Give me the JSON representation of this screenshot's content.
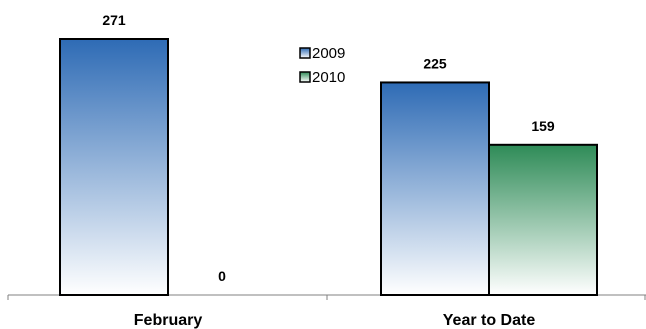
{
  "chart_data": {
    "type": "bar",
    "categories": [
      "February",
      "Year to Date"
    ],
    "series": [
      {
        "name": "2009",
        "values": [
          271,
          225
        ],
        "color": "#2e6bb5"
      },
      {
        "name": "2010",
        "values": [
          0,
          159
        ],
        "color": "#2e8b57"
      }
    ],
    "data_labels": [
      [
        "271",
        "225"
      ],
      [
        "0",
        "159"
      ]
    ],
    "ylim": [
      0,
      271
    ],
    "title": "",
    "xlabel": "",
    "ylabel": "",
    "grid": false,
    "legend_position": "top-center"
  }
}
